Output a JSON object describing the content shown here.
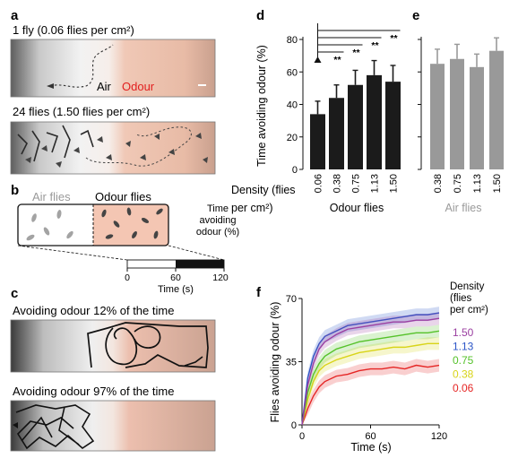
{
  "panel_a": {
    "label": "a",
    "caption1": "1 fly (0.06 flies per cm²)",
    "air": "Air",
    "odour": "Odour",
    "caption2": "24 flies (1.50 flies per cm²)"
  },
  "panel_b": {
    "label": "b",
    "air_flies": "Air flies",
    "odour_flies": "Odour flies",
    "legend_title": "Time avoiding odour (%)",
    "legend_ticks": [
      "0",
      "60",
      "120"
    ],
    "legend_unit": "Time (s)"
  },
  "panel_c": {
    "label": "c",
    "caption1": "Avoiding odour 12% of the time",
    "caption2": "Avoiding odour 97% of the time"
  },
  "panel_d": {
    "label": "d",
    "density_label": "Density (flies per cm²)"
  },
  "panel_e": {
    "label": "e"
  },
  "panel_f": {
    "label": "f"
  },
  "colors": {
    "odour_red": "#e21e1e",
    "bar_dark": "#1b1b1b",
    "bar_grey": "#999999",
    "odour_tint": "#f2c9b5",
    "purple": "#9b3fa1",
    "blue": "#2b55c7",
    "green": "#55c22a",
    "yellow": "#d8d418",
    "red": "#e52524"
  },
  "chart_data": [
    {
      "id": "d",
      "type": "bar",
      "title": "",
      "ylabel": "Time avoiding odour (%)",
      "xlabel": "Odour flies",
      "categories": [
        "0.06",
        "0.38",
        "0.75",
        "1.13",
        "1.50"
      ],
      "values": [
        34,
        44,
        52,
        58,
        54
      ],
      "errors": [
        8,
        8,
        9,
        9,
        10
      ],
      "ylim": [
        0,
        80
      ],
      "yticks": [
        0,
        20,
        40,
        60,
        80
      ],
      "significance": [
        "**",
        "**",
        "**",
        "**"
      ]
    },
    {
      "id": "e",
      "type": "bar",
      "title": "",
      "xlabel": "Air flies",
      "categories": [
        "0.38",
        "0.75",
        "1.13",
        "1.50"
      ],
      "values": [
        65,
        68,
        63,
        73
      ],
      "errors": [
        9,
        9,
        8,
        8
      ],
      "ylim": [
        0,
        80
      ]
    },
    {
      "id": "f",
      "type": "line",
      "title": "",
      "ylabel": "Flies avoiding odour (%)",
      "xlabel": "Time (s)",
      "xlim": [
        0,
        120
      ],
      "xticks": [
        0,
        60,
        120
      ],
      "ylim": [
        0,
        70
      ],
      "yticks": [
        0,
        35,
        70
      ],
      "legend_title": "Density (flies per cm²)",
      "x": [
        0,
        5,
        10,
        15,
        20,
        30,
        40,
        50,
        60,
        70,
        80,
        90,
        100,
        110,
        120
      ],
      "series": [
        {
          "name": "1.50",
          "color": "#9b3fa1",
          "values": [
            0,
            22,
            34,
            42,
            46,
            50,
            53,
            54,
            55,
            56,
            57,
            57,
            58,
            58,
            59
          ]
        },
        {
          "name": "1.13",
          "color": "#2b55c7",
          "values": [
            0,
            26,
            38,
            45,
            49,
            52,
            55,
            56,
            57,
            58,
            59,
            60,
            61,
            61,
            62
          ]
        },
        {
          "name": "0.75",
          "color": "#55c22a",
          "values": [
            0,
            18,
            28,
            34,
            38,
            42,
            44,
            46,
            47,
            48,
            49,
            50,
            51,
            51,
            52
          ]
        },
        {
          "name": "0.38",
          "color": "#d8d418",
          "values": [
            0,
            14,
            24,
            30,
            33,
            36,
            38,
            40,
            41,
            42,
            43,
            43,
            44,
            45,
            45
          ]
        },
        {
          "name": "0.06",
          "color": "#e52524",
          "values": [
            0,
            9,
            16,
            21,
            24,
            27,
            28,
            30,
            31,
            31,
            32,
            31,
            33,
            32,
            33
          ]
        }
      ]
    }
  ]
}
